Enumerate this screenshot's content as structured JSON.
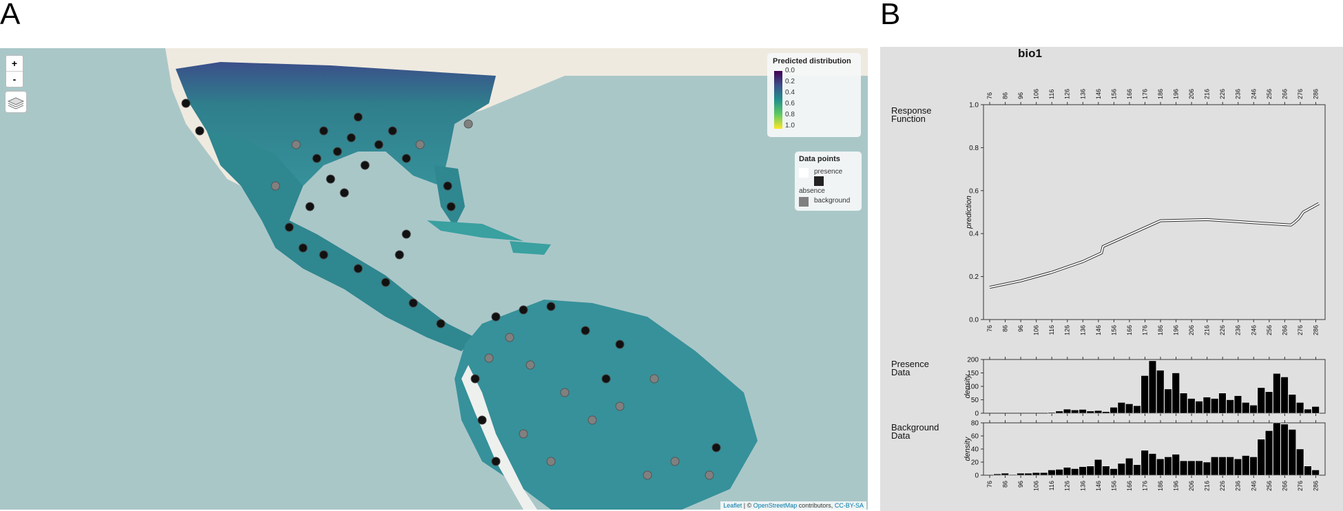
{
  "panels": {
    "a_label": "A",
    "b_label": "B"
  },
  "map": {
    "zoom_in": "+",
    "zoom_out": "-",
    "legend_predicted": {
      "title": "Predicted distribution",
      "ticks": [
        "0.0",
        "0.2",
        "0.4",
        "0.6",
        "0.8",
        "1.0"
      ],
      "colors": [
        "#440154",
        "#3b528b",
        "#21918c",
        "#5ec962",
        "#fde725"
      ]
    },
    "legend_points": {
      "title": "Data points",
      "items": [
        {
          "label": "presence",
          "color": "#ffffff"
        },
        {
          "label": "absence",
          "color": "#222222"
        },
        {
          "label": "background",
          "color": "#808080"
        }
      ]
    },
    "attribution": {
      "leaflet": "Leaflet",
      "mid": " | © ",
      "osm": "OpenStreetMap",
      "contrib": " contributors, ",
      "license": "CC-BY-SA"
    }
  },
  "chart_data": {
    "title": "bio1",
    "top_x_ticks": [
      "76",
      "86",
      "96",
      "106",
      "116",
      "126",
      "136",
      "146",
      "156",
      "166",
      "176",
      "186",
      "196",
      "206",
      "216",
      "226",
      "236",
      "246",
      "256",
      "266",
      "276",
      "286"
    ],
    "bottom_x_ticks": [
      "76",
      "86",
      "96",
      "106",
      "116",
      "126",
      "136",
      "146",
      "156",
      "166",
      "176",
      "186",
      "196",
      "206",
      "216",
      "226",
      "236",
      "246",
      "256",
      "266",
      "276",
      "286"
    ],
    "panels": [
      {
        "type": "line",
        "label_line1": "Response",
        "label_line2": "Function",
        "ylabel": "prediction",
        "yticks": [
          "0.0",
          "0.2",
          "0.4",
          "0.6",
          "0.8",
          "1.0"
        ],
        "ylim": [
          0,
          1
        ],
        "xlim": [
          72,
          292
        ],
        "x": [
          76,
          96,
          116,
          136,
          148,
          149,
          186,
          216,
          248,
          270,
          272,
          275,
          278,
          283,
          288
        ],
        "y": [
          0.15,
          0.18,
          0.22,
          0.27,
          0.31,
          0.34,
          0.46,
          0.465,
          0.45,
          0.44,
          0.45,
          0.47,
          0.5,
          0.52,
          0.54
        ]
      },
      {
        "type": "bar",
        "label_line1": "Presence",
        "label_line2": "Data",
        "ylabel": "density",
        "yticks": [
          "0",
          "50",
          "100",
          "150",
          "200"
        ],
        "ylim": [
          0,
          200
        ],
        "xlim": [
          72,
          292
        ],
        "bin_starts": [
          76,
          81,
          86,
          91,
          96,
          101,
          106,
          111,
          116,
          121,
          126,
          131,
          136,
          141,
          146,
          151,
          156,
          161,
          166,
          171,
          176,
          181,
          186,
          191,
          196,
          201,
          206,
          211,
          216,
          221,
          226,
          231,
          236,
          241,
          246,
          251,
          256,
          261,
          266,
          271,
          276,
          281,
          286
        ],
        "values": [
          0,
          0,
          0,
          0,
          0,
          0,
          0,
          0,
          3,
          8,
          15,
          12,
          14,
          8,
          10,
          6,
          22,
          40,
          35,
          28,
          140,
          195,
          160,
          90,
          150,
          75,
          55,
          45,
          60,
          55,
          75,
          50,
          65,
          40,
          30,
          95,
          80,
          148,
          135,
          70,
          40,
          15,
          25
        ]
      },
      {
        "type": "bar",
        "label_line1": "Background",
        "label_line2": "Data",
        "ylabel": "density",
        "yticks": [
          "0",
          "20",
          "40",
          "60",
          "80"
        ],
        "ylim": [
          0,
          80
        ],
        "xlim": [
          72,
          292
        ],
        "bin_starts": [
          76,
          81,
          86,
          91,
          96,
          101,
          106,
          111,
          116,
          121,
          126,
          131,
          136,
          141,
          146,
          151,
          156,
          161,
          166,
          171,
          176,
          181,
          186,
          191,
          196,
          201,
          206,
          211,
          216,
          221,
          226,
          231,
          236,
          241,
          246,
          251,
          256,
          261,
          266,
          271,
          276,
          281,
          286
        ],
        "values": [
          0,
          2,
          3,
          1,
          3,
          3,
          4,
          4,
          8,
          9,
          12,
          10,
          13,
          14,
          24,
          14,
          10,
          18,
          26,
          16,
          38,
          33,
          25,
          28,
          32,
          22,
          22,
          22,
          20,
          28,
          28,
          28,
          25,
          30,
          28,
          55,
          68,
          80,
          78,
          70,
          40,
          14,
          8
        ]
      }
    ]
  }
}
